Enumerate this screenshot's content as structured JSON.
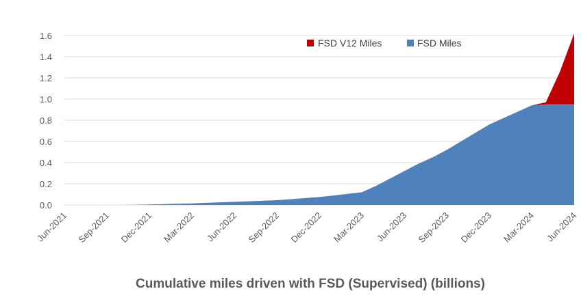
{
  "chart_data": {
    "type": "area",
    "title": "Cumulative miles driven with FSD (Supervised) (billions)",
    "xlabel": "",
    "ylabel": "",
    "ylim": [
      0,
      1.6
    ],
    "y_ticks": [
      "0.0",
      "0.2",
      "0.4",
      "0.6",
      "0.8",
      "1.0",
      "1.2",
      "1.4",
      "1.6"
    ],
    "x_ticks": [
      "Jun-2021",
      "Sep-2021",
      "Dec-2021",
      "Mar-2022",
      "Jun-2022",
      "Sep-2022",
      "Dec-2022",
      "Mar-2023",
      "Jun-2023",
      "Sep-2023",
      "Dec-2023",
      "Mar-2024",
      "Jun-2024"
    ],
    "grid": true,
    "stacked": true,
    "legend_position": "top-right",
    "x": [
      "2021-06",
      "2021-07",
      "2021-08",
      "2021-09",
      "2021-10",
      "2021-11",
      "2021-12",
      "2022-01",
      "2022-02",
      "2022-03",
      "2022-04",
      "2022-05",
      "2022-06",
      "2022-07",
      "2022-08",
      "2022-09",
      "2022-10",
      "2022-11",
      "2022-12",
      "2023-01",
      "2023-02",
      "2023-03",
      "2023-04",
      "2023-05",
      "2023-06",
      "2023-07",
      "2023-08",
      "2023-09",
      "2023-10",
      "2023-11",
      "2023-12",
      "2024-01",
      "2024-02",
      "2024-03",
      "2024-04",
      "2024-05",
      "2024-06"
    ],
    "series": [
      {
        "name": "FSD Miles",
        "color": "#4f81bd",
        "values": [
          0.0,
          0.0,
          0.0,
          0.0,
          0.0,
          0.002,
          0.005,
          0.008,
          0.012,
          0.015,
          0.02,
          0.025,
          0.03,
          0.035,
          0.04,
          0.045,
          0.055,
          0.065,
          0.075,
          0.09,
          0.105,
          0.12,
          0.18,
          0.25,
          0.32,
          0.39,
          0.45,
          0.52,
          0.6,
          0.68,
          0.76,
          0.82,
          0.88,
          0.94,
          0.95,
          0.95,
          0.95
        ]
      },
      {
        "name": "FSD V12 Miles",
        "color": "#c00000",
        "values": [
          0,
          0,
          0,
          0,
          0,
          0,
          0,
          0,
          0,
          0,
          0,
          0,
          0,
          0,
          0,
          0,
          0,
          0,
          0,
          0,
          0,
          0,
          0,
          0,
          0,
          0,
          0,
          0,
          0,
          0,
          0,
          0,
          0,
          0,
          0.02,
          0.31,
          0.67
        ]
      }
    ]
  }
}
